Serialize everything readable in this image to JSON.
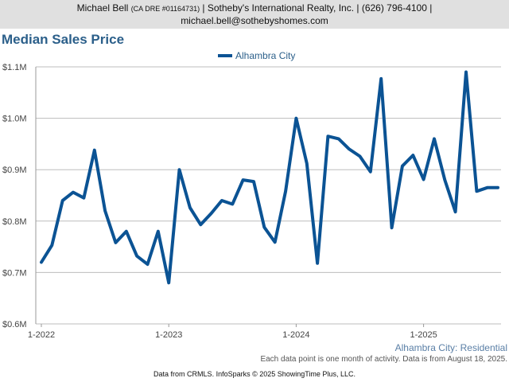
{
  "header": {
    "line1_name": "Michael Bell",
    "line1_license": "(CA DRE #01164731)",
    "line1_rest": "| Sotheby's International Realty, Inc. | (626) 796-4100 |",
    "line2": "michael.bell@sothebyshomes.com"
  },
  "caption": "Alhambra City: Residential",
  "note": "Each data point is one month of activity. Data is from August 18, 2025.",
  "footer": "Data from CRMLS. InfoSparks © 2025 ShowingTime Plus, LLC.",
  "colors": {
    "series": "#0b5394",
    "title": "#2b5f8a",
    "grid": "#bdbdbd"
  },
  "chart_data": {
    "type": "line",
    "title": "Median Sales Price",
    "xlabel": "",
    "ylabel": "",
    "ylim": [
      600000,
      1100000
    ],
    "yticks": [
      {
        "value": 600000,
        "label": "$0.6M"
      },
      {
        "value": 700000,
        "label": "$0.7M"
      },
      {
        "value": 800000,
        "label": "$0.8M"
      },
      {
        "value": 900000,
        "label": "$0.9M"
      },
      {
        "value": 1000000,
        "label": "$1.0M"
      },
      {
        "value": 1100000,
        "label": "$1.1M"
      }
    ],
    "xticks": [
      "1-2022",
      "1-2023",
      "1-2024",
      "1-2025"
    ],
    "legend": "top-center",
    "grid": true,
    "series": [
      {
        "name": "Alhambra City",
        "x": [
          "2022-01",
          "2022-02",
          "2022-03",
          "2022-04",
          "2022-05",
          "2022-06",
          "2022-07",
          "2022-08",
          "2022-09",
          "2022-10",
          "2022-11",
          "2022-12",
          "2023-01",
          "2023-02",
          "2023-03",
          "2023-04",
          "2023-05",
          "2023-06",
          "2023-07",
          "2023-08",
          "2023-09",
          "2023-10",
          "2023-11",
          "2023-12",
          "2024-01",
          "2024-02",
          "2024-03",
          "2024-04",
          "2024-05",
          "2024-06",
          "2024-07",
          "2024-08",
          "2024-09",
          "2024-10",
          "2024-11",
          "2024-12",
          "2025-01",
          "2025-02",
          "2025-03",
          "2025-04",
          "2025-05",
          "2025-06",
          "2025-07",
          "2025-08"
        ],
        "values": [
          720000,
          753000,
          840000,
          856000,
          845000,
          938000,
          820000,
          758000,
          780000,
          732000,
          716000,
          780000,
          680000,
          900000,
          826000,
          793000,
          815000,
          840000,
          833000,
          880000,
          877000,
          788000,
          759000,
          858000,
          1000000,
          912000,
          718000,
          965000,
          960000,
          940000,
          926000,
          896000,
          1077000,
          787000,
          907000,
          928000,
          881000,
          960000,
          880000,
          818000,
          1090000,
          858000,
          865000,
          865000
        ]
      }
    ]
  }
}
